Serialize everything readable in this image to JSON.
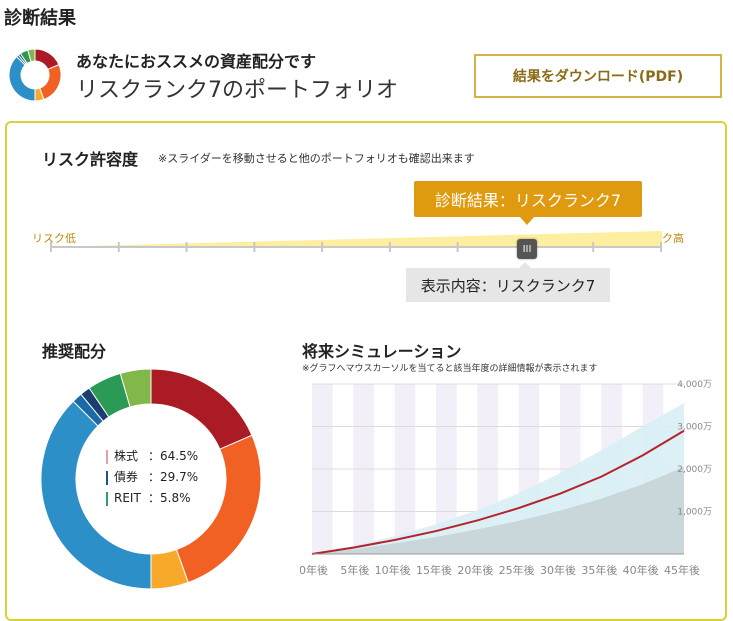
{
  "page": {
    "title": "診断結果"
  },
  "header": {
    "heading": "あなたにおススメの資産配分です",
    "portfolio": "リスクランク7のポートフォリオ",
    "download_label": "結果をダウンロード(PDF)"
  },
  "risk": {
    "title": "リスク許容度",
    "note": "※スライダーを移動させると他のポートフォリオも確認出来ます",
    "result_label": "診断結果：リスクランク7",
    "low_label": "リスク低",
    "high_label": "リスク高",
    "display_label": "表示内容：リスクランク7",
    "handle_glyph": "III",
    "rank_min": 1,
    "rank_max": 10,
    "current_rank": 7,
    "colors": {
      "accent": "#e09a0f",
      "track_fill": "#fdeea0"
    }
  },
  "allocation": {
    "title": "推奨配分",
    "legend": [
      {
        "label": "株式",
        "value": "：64.5%",
        "color": "#e8a0a8"
      },
      {
        "label": "債券",
        "value": "：29.7%",
        "color": "#1f4f8c"
      },
      {
        "label": "REIT",
        "value": "：5.8%",
        "color": "#2aa06a"
      }
    ]
  },
  "simulation": {
    "title": "将来シミュレーション",
    "note": "※グラフへマウスカーソルを当てると該当年度の詳細情報が表示されます"
  },
  "chart_data": [
    {
      "type": "pie",
      "subtype": "donut",
      "title": "推奨配分",
      "slices": [
        {
          "name": "segment-1",
          "value": 18.5,
          "color": "#ab1b25"
        },
        {
          "name": "segment-2",
          "value": 26.0,
          "color": "#f26124"
        },
        {
          "name": "segment-3",
          "value": 5.5,
          "color": "#f7a92a"
        },
        {
          "name": "segment-4",
          "value": 37.5,
          "color": "#2d8fc7"
        },
        {
          "name": "segment-5",
          "value": 1.5,
          "color": "#1b6aa8"
        },
        {
          "name": "segment-6",
          "value": 1.5,
          "color": "#1c3e6e"
        },
        {
          "name": "segment-7",
          "value": 5.0,
          "color": "#2b9a57"
        },
        {
          "name": "segment-8",
          "value": 4.5,
          "color": "#82b84a"
        }
      ]
    },
    {
      "type": "area",
      "title": "将来シミュレーション",
      "x": [
        0,
        5,
        10,
        15,
        20,
        25,
        30,
        35,
        40,
        45
      ],
      "x_tick_labels": [
        "0年後",
        "5年後",
        "10年後",
        "15年後",
        "20年後",
        "25年後",
        "30年後",
        "35年後",
        "40年後",
        "45年後"
      ],
      "y_tick_labels": [
        "1,000万",
        "2,000万",
        "3,000万",
        "4,000万"
      ],
      "y_ticks": [
        1000,
        2000,
        3000,
        4000
      ],
      "ylim": [
        0,
        4000
      ],
      "unit": "万",
      "series": [
        {
          "role": "median",
          "values": [
            0,
            150,
            330,
            540,
            790,
            1080,
            1420,
            1820,
            2320,
            2900
          ],
          "color": "#b5232b"
        },
        {
          "role": "upper",
          "values": [
            0,
            190,
            420,
            700,
            1030,
            1430,
            1900,
            2440,
            3000,
            3550
          ],
          "color": "#d8eef5"
        },
        {
          "role": "lower",
          "values": [
            0,
            110,
            250,
            400,
            580,
            780,
            1020,
            1300,
            1640,
            2050
          ],
          "color": "#c6d3d7"
        }
      ]
    }
  ]
}
